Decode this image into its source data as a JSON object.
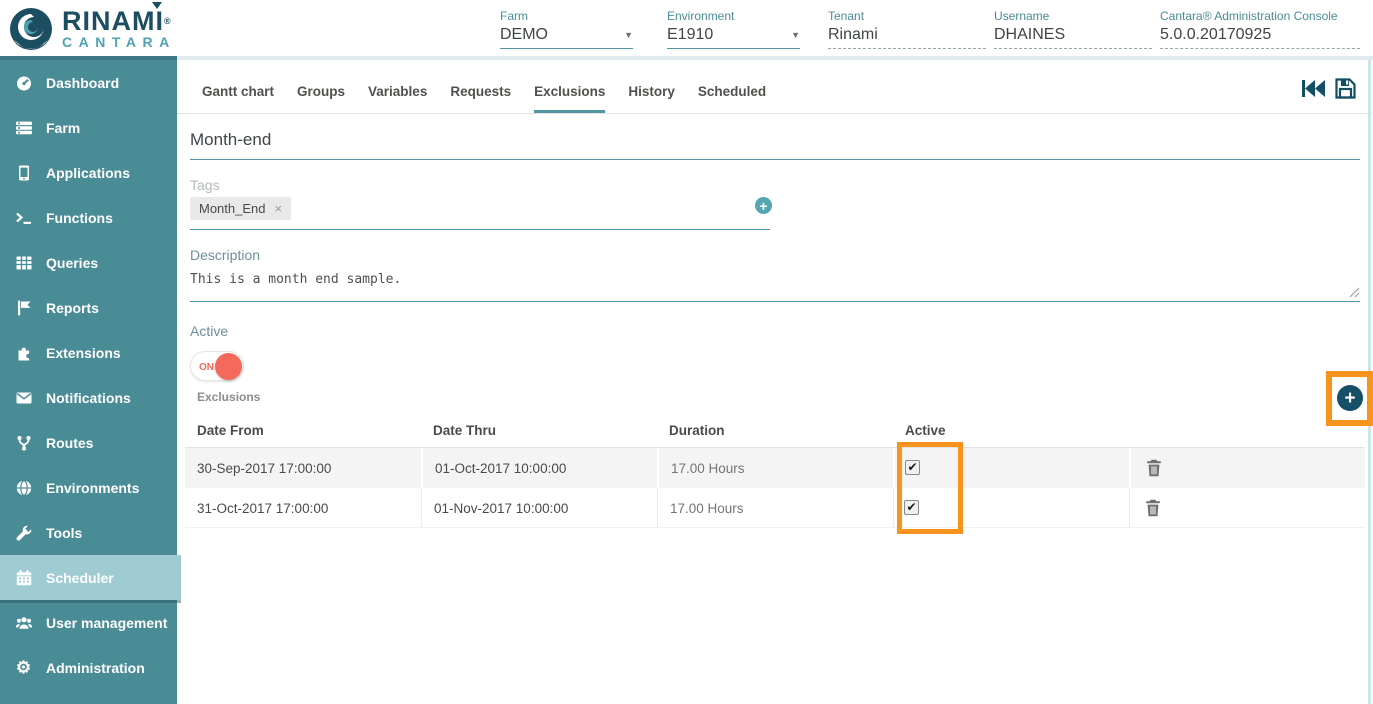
{
  "brand": {
    "name": "RINAMI",
    "registered": "®",
    "sub": "CANTARA"
  },
  "header": {
    "fields": [
      {
        "label": "Farm",
        "value": "DEMO",
        "type": "select"
      },
      {
        "label": "Environment",
        "value": "E1910",
        "type": "select"
      },
      {
        "label": "Tenant",
        "value": "Rinami",
        "type": "text"
      },
      {
        "label": "Username",
        "value": "DHAINES",
        "type": "text"
      },
      {
        "label": "Cantara® Administration Console",
        "value": "5.0.0.20170925",
        "type": "text"
      }
    ]
  },
  "sidebar": {
    "items": [
      {
        "label": "Dashboard",
        "icon": "dashboard"
      },
      {
        "label": "Farm",
        "icon": "farm"
      },
      {
        "label": "Applications",
        "icon": "applications"
      },
      {
        "label": "Functions",
        "icon": "functions"
      },
      {
        "label": "Queries",
        "icon": "queries"
      },
      {
        "label": "Reports",
        "icon": "reports"
      },
      {
        "label": "Extensions",
        "icon": "extensions"
      },
      {
        "label": "Notifications",
        "icon": "notifications"
      },
      {
        "label": "Routes",
        "icon": "routes"
      },
      {
        "label": "Environments",
        "icon": "environments"
      },
      {
        "label": "Tools",
        "icon": "tools"
      },
      {
        "label": "Scheduler",
        "icon": "scheduler",
        "active": true
      },
      {
        "label": "User management",
        "icon": "user-management"
      },
      {
        "label": "Administration",
        "icon": "administration"
      }
    ]
  },
  "tabs": {
    "items": [
      "Gantt chart",
      "Groups",
      "Variables",
      "Requests",
      "Exclusions",
      "History",
      "Scheduled"
    ],
    "active": "Exclusions"
  },
  "toolbar": {
    "icons": [
      "rewind",
      "save"
    ]
  },
  "form": {
    "name": {
      "value": "Month-end"
    },
    "tags": {
      "label": "Tags",
      "chips": [
        "Month_End"
      ],
      "remove_symbol": "×",
      "add_icon": "plus"
    },
    "description": {
      "label": "Description",
      "value": "This is a month end sample."
    },
    "active": {
      "label": "Active",
      "state": "ON"
    },
    "exclusions_label": "Exclusions",
    "add_exclusion_icon": "plus"
  },
  "table": {
    "columns": [
      "Date From",
      "Date Thru",
      "Duration",
      "Active"
    ],
    "rows": [
      {
        "date_from": "30-Sep-2017 17:00:00",
        "date_thru": "01-Oct-2017 10:00:00",
        "duration": "17.00 Hours",
        "active": true
      },
      {
        "date_from": "31-Oct-2017 17:00:00",
        "date_thru": "01-Nov-2017 10:00:00",
        "duration": "17.00 Hours",
        "active": true
      }
    ]
  },
  "colors": {
    "sidebar_teal": "#4A8C96",
    "sidebar_active": "#9FCCD3",
    "accent_teal": "#4E97A3",
    "brand_navy": "#1C4E62",
    "highlight_orange": "#F7941E",
    "toggle_on_red": "#F4695C"
  }
}
